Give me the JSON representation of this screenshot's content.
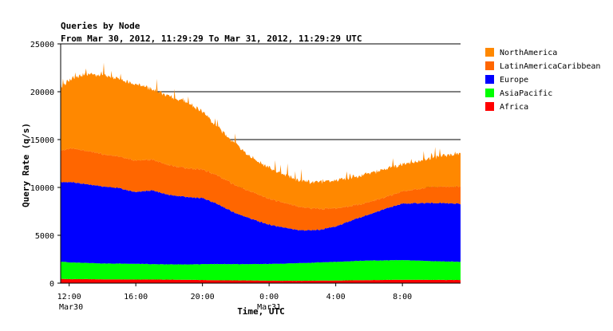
{
  "chart_data": {
    "type": "area",
    "stacked": true,
    "title": "Queries by Node",
    "subtitle": "From Mar 30, 2012, 11:29:29 To Mar 31, 2012, 11:29:29 UTC",
    "xlabel": "Time, UTC",
    "ylabel": "Query Rate (q/s)",
    "ylim": [
      0,
      25000
    ],
    "y_ticks": [
      "0",
      "5000",
      "10000",
      "15000",
      "20000",
      "25000"
    ],
    "y_tick_values": [
      0,
      5000,
      10000,
      15000,
      20000,
      25000
    ],
    "grid_y": true,
    "legend_position": "right",
    "x_ticks": [
      {
        "time": "12:00",
        "date": "Mar30",
        "hour": 12
      },
      {
        "time": "16:00",
        "date": "",
        "hour": 16
      },
      {
        "time": "20:00",
        "date": "",
        "hour": 20
      },
      {
        "time": "0:00",
        "date": "Mar31",
        "hour": 24
      },
      {
        "time": "4:00",
        "date": "",
        "hour": 28
      },
      {
        "time": "8:00",
        "date": "",
        "hour": 32
      }
    ],
    "x_start_hour": 11.49,
    "x_end_hour": 35.49,
    "hours": [
      11.5,
      12,
      13,
      14,
      15,
      16,
      17,
      18,
      19,
      20,
      21,
      22,
      23,
      24,
      25,
      26,
      27,
      28,
      29,
      30,
      31,
      32,
      33,
      34,
      35.5
    ],
    "series": [
      {
        "name": "Africa",
        "color": "#ff0000",
        "values": [
          450,
          420,
          420,
          400,
          390,
          380,
          380,
          370,
          350,
          330,
          300,
          290,
          280,
          260,
          250,
          250,
          260,
          270,
          300,
          320,
          340,
          350,
          350,
          340,
          330
        ]
      },
      {
        "name": "AsiaPacific",
        "color": "#00ff00",
        "values": [
          1800,
          1750,
          1700,
          1650,
          1650,
          1650,
          1600,
          1600,
          1600,
          1650,
          1700,
          1700,
          1700,
          1750,
          1800,
          1850,
          1900,
          1950,
          2000,
          2050,
          2050,
          2050,
          2000,
          1950,
          1900
        ]
      },
      {
        "name": "Europe",
        "color": "#0000ff",
        "values": [
          8300,
          8400,
          8250,
          8050,
          7900,
          7500,
          7700,
          7250,
          7050,
          6900,
          6200,
          5300,
          4700,
          4100,
          3700,
          3400,
          3400,
          3700,
          4300,
          4800,
          5400,
          5900,
          6000,
          6100,
          6050
        ]
      },
      {
        "name": "LatinAmericaCaribbean",
        "color": "#ff6600",
        "values": [
          3300,
          3500,
          3500,
          3400,
          3300,
          3300,
          3200,
          3100,
          3000,
          3000,
          3000,
          2900,
          2800,
          2700,
          2600,
          2400,
          2200,
          1900,
          1500,
          1300,
          1200,
          1300,
          1500,
          1700,
          1800
        ]
      },
      {
        "name": "NorthAmerica",
        "color": "#ff8800",
        "values": [
          6600,
          7200,
          8000,
          8200,
          8100,
          8000,
          7400,
          7200,
          7000,
          6000,
          5000,
          4300,
          3600,
          3200,
          2900,
          2700,
          2800,
          2900,
          3000,
          3000,
          2900,
          2800,
          2900,
          3100,
          3400
        ]
      }
    ]
  }
}
